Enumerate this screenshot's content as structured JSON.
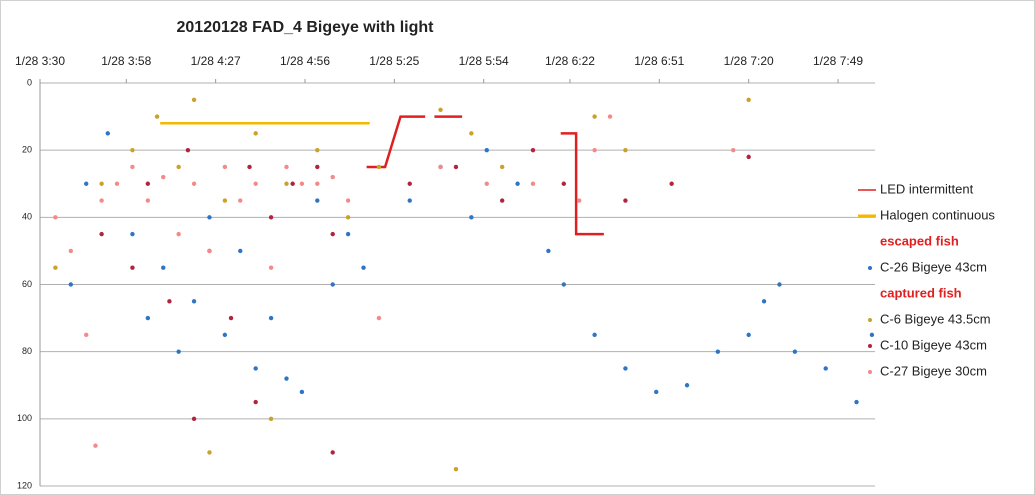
{
  "chart_data": {
    "type": "scatter",
    "title": "20120128  FAD_4  Bigeye with light",
    "annotations": [
      "escaped fish",
      "captured fish"
    ],
    "xlim": [
      "1/28 3:30",
      "1/28 8:01"
    ],
    "xticks": [
      "1/28 3:30",
      "1/28 3:58",
      "1/28 4:27",
      "1/28 4:56",
      "1/28 5:25",
      "1/28 5:54",
      "1/28 6:22",
      "1/28 6:51",
      "1/28 7:20",
      "1/28 7:49"
    ],
    "ylim": [
      0,
      120
    ],
    "yticks": [
      0,
      20,
      40,
      60,
      80,
      100,
      120
    ],
    "y_inverted": true,
    "grid": true,
    "series": [
      {
        "name": "LED intermittent",
        "color": "#e02020",
        "marker": "line",
        "x": [
          "1/28 5:16",
          "1/28 5:22",
          "1/28 5:27",
          "1/28 5:35",
          null,
          "1/28 5:38",
          "1/28 5:47",
          null,
          "1/28 6:19",
          "1/28 6:24",
          "1/28 6:24",
          "1/28 6:33"
        ],
        "values": [
          25,
          25,
          10,
          10,
          null,
          10,
          10,
          null,
          15,
          15,
          45,
          45
        ]
      },
      {
        "name": "Halogen continuous",
        "color": "#f5b800",
        "marker": "line",
        "x": [
          "1/28 4:09",
          "1/28 5:17"
        ],
        "values": [
          12,
          12
        ]
      },
      {
        "name": "C-26 Bigeye 43cm",
        "color": "#2e75c6",
        "marker": "dot",
        "x": [
          "1/28 3:40",
          "1/28 3:45",
          "1/28 3:52",
          "1/28 4:00",
          "1/28 4:05",
          "1/28 4:10",
          "1/28 4:15",
          "1/28 4:20",
          "1/28 4:25",
          "1/28 4:30",
          "1/28 4:35",
          "1/28 4:40",
          "1/28 4:45",
          "1/28 4:50",
          "1/28 4:55",
          "1/28 5:00",
          "1/28 5:05",
          "1/28 5:10",
          "1/28 5:15",
          "1/28 5:30",
          "1/28 5:40",
          "1/28 5:50",
          "1/28 5:55",
          "1/28 6:05",
          "1/28 6:15",
          "1/28 6:20",
          "1/28 6:30",
          "1/28 6:40",
          "1/28 6:50",
          "1/28 7:00",
          "1/28 7:10",
          "1/28 7:20",
          "1/28 7:25",
          "1/28 7:30",
          "1/28 7:35",
          "1/28 7:45",
          "1/28 7:55",
          "1/28 8:00"
        ],
        "values": [
          60,
          30,
          15,
          45,
          70,
          55,
          80,
          65,
          40,
          75,
          50,
          85,
          70,
          88,
          92,
          35,
          60,
          45,
          55,
          35,
          25,
          40,
          20,
          30,
          50,
          60,
          75,
          85,
          92,
          90,
          80,
          75,
          65,
          60,
          80,
          85,
          95,
          75
        ]
      },
      {
        "name": "C-6 Bigeye 43.5cm",
        "color": "#c9a227",
        "marker": "dot",
        "x": [
          "1/28 3:35",
          "1/28 3:50",
          "1/28 4:00",
          "1/28 4:08",
          "1/28 4:15",
          "1/28 4:20",
          "1/28 4:30",
          "1/28 4:40",
          "1/28 4:50",
          "1/28 5:00",
          "1/28 5:10",
          "1/28 5:20",
          "1/28 5:40",
          "1/28 5:50",
          "1/28 6:00",
          "1/28 6:30",
          "1/28 6:40",
          "1/28 7:20",
          "1/28 4:25",
          "1/28 4:45",
          "1/28 5:45"
        ],
        "values": [
          55,
          30,
          20,
          10,
          25,
          5,
          35,
          15,
          30,
          20,
          40,
          25,
          8,
          15,
          25,
          10,
          20,
          5,
          110,
          100,
          115
        ]
      },
      {
        "name": "C-10 Bigeye 43cm",
        "color": "#b0243e",
        "marker": "dot",
        "x": [
          "1/28 3:50",
          "1/28 4:00",
          "1/28 4:05",
          "1/28 4:12",
          "1/28 4:18",
          "1/28 4:25",
          "1/28 4:32",
          "1/28 4:38",
          "1/28 4:45",
          "1/28 4:52",
          "1/28 5:00",
          "1/28 5:05",
          "1/28 5:30",
          "1/28 5:45",
          "1/28 6:00",
          "1/28 6:10",
          "1/28 6:20",
          "1/28 6:40",
          "1/28 6:55",
          "1/28 7:20",
          "1/28 4:20",
          "1/28 4:40",
          "1/28 5:05"
        ],
        "values": [
          45,
          55,
          30,
          65,
          20,
          50,
          70,
          25,
          40,
          30,
          25,
          45,
          30,
          25,
          35,
          20,
          30,
          35,
          30,
          22,
          100,
          95,
          110
        ]
      },
      {
        "name": "C-27 Bigeye 30cm",
        "color": "#f4898a",
        "marker": "dot",
        "x": [
          "1/28 3:35",
          "1/28 3:40",
          "1/28 3:45",
          "1/28 3:50",
          "1/28 3:55",
          "1/28 4:00",
          "1/28 4:05",
          "1/28 4:10",
          "1/28 4:15",
          "1/28 4:20",
          "1/28 4:25",
          "1/28 4:30",
          "1/28 4:35",
          "1/28 4:40",
          "1/28 4:45",
          "1/28 4:50",
          "1/28 4:55",
          "1/28 5:00",
          "1/28 5:05",
          "1/28 5:10",
          "1/28 5:40",
          "1/28 5:55",
          "1/28 6:10",
          "1/28 6:25",
          "1/28 6:30",
          "1/28 6:35",
          "1/28 7:15",
          "1/28 3:48",
          "1/28 5:20"
        ],
        "values": [
          40,
          50,
          75,
          35,
          30,
          25,
          35,
          28,
          45,
          30,
          50,
          25,
          35,
          30,
          55,
          25,
          30,
          30,
          28,
          35,
          25,
          30,
          30,
          35,
          20,
          10,
          20,
          108,
          70
        ]
      }
    ]
  }
}
